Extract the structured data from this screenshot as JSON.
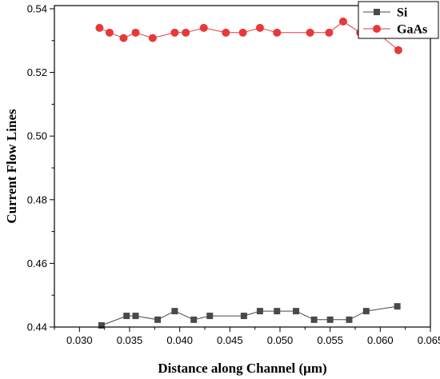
{
  "chart_data": {
    "type": "line",
    "xlabel": "Distance along Channel (μm)",
    "ylabel": "Current Flow Lines",
    "xlim": [
      0.0275,
      0.065
    ],
    "ylim": [
      0.44,
      0.541
    ],
    "x_ticks": [
      0.03,
      0.035,
      0.04,
      0.045,
      0.05,
      0.055,
      0.06,
      0.065
    ],
    "x_tick_labels": [
      "0.030",
      "0.035",
      "0.040",
      "0.045",
      "0.050",
      "0.055",
      "0.060",
      "0.065"
    ],
    "y_ticks": [
      0.44,
      0.46,
      0.48,
      0.5,
      0.52,
      0.54
    ],
    "y_tick_labels": [
      "0.44",
      "0.46",
      "0.48",
      "0.50",
      "0.52",
      "0.54"
    ],
    "legend_position": "top-right",
    "series": [
      {
        "name": "Si",
        "color": "#4a4a4a",
        "marker": "square",
        "x": [
          0.0322,
          0.0347,
          0.0356,
          0.0378,
          0.0395,
          0.0414,
          0.043,
          0.0464,
          0.048,
          0.0497,
          0.0516,
          0.0534,
          0.055,
          0.0569,
          0.0586,
          0.0617
        ],
        "y": [
          0.4405,
          0.4435,
          0.4435,
          0.4423,
          0.445,
          0.4423,
          0.4435,
          0.4435,
          0.445,
          0.445,
          0.445,
          0.4423,
          0.4423,
          0.4423,
          0.445,
          0.4465
        ]
      },
      {
        "name": "GaAs",
        "color": "#e8383a",
        "marker": "circle",
        "x": [
          0.032,
          0.033,
          0.0344,
          0.0356,
          0.0373,
          0.0395,
          0.0406,
          0.0424,
          0.0446,
          0.0463,
          0.048,
          0.0497,
          0.053,
          0.0549,
          0.0563,
          0.058,
          0.0597,
          0.0618
        ],
        "y": [
          0.534,
          0.5325,
          0.5308,
          0.5325,
          0.5308,
          0.5325,
          0.5325,
          0.534,
          0.5325,
          0.5325,
          0.534,
          0.5325,
          0.5325,
          0.5325,
          0.536,
          0.5325,
          0.5325,
          0.527
        ]
      }
    ]
  }
}
